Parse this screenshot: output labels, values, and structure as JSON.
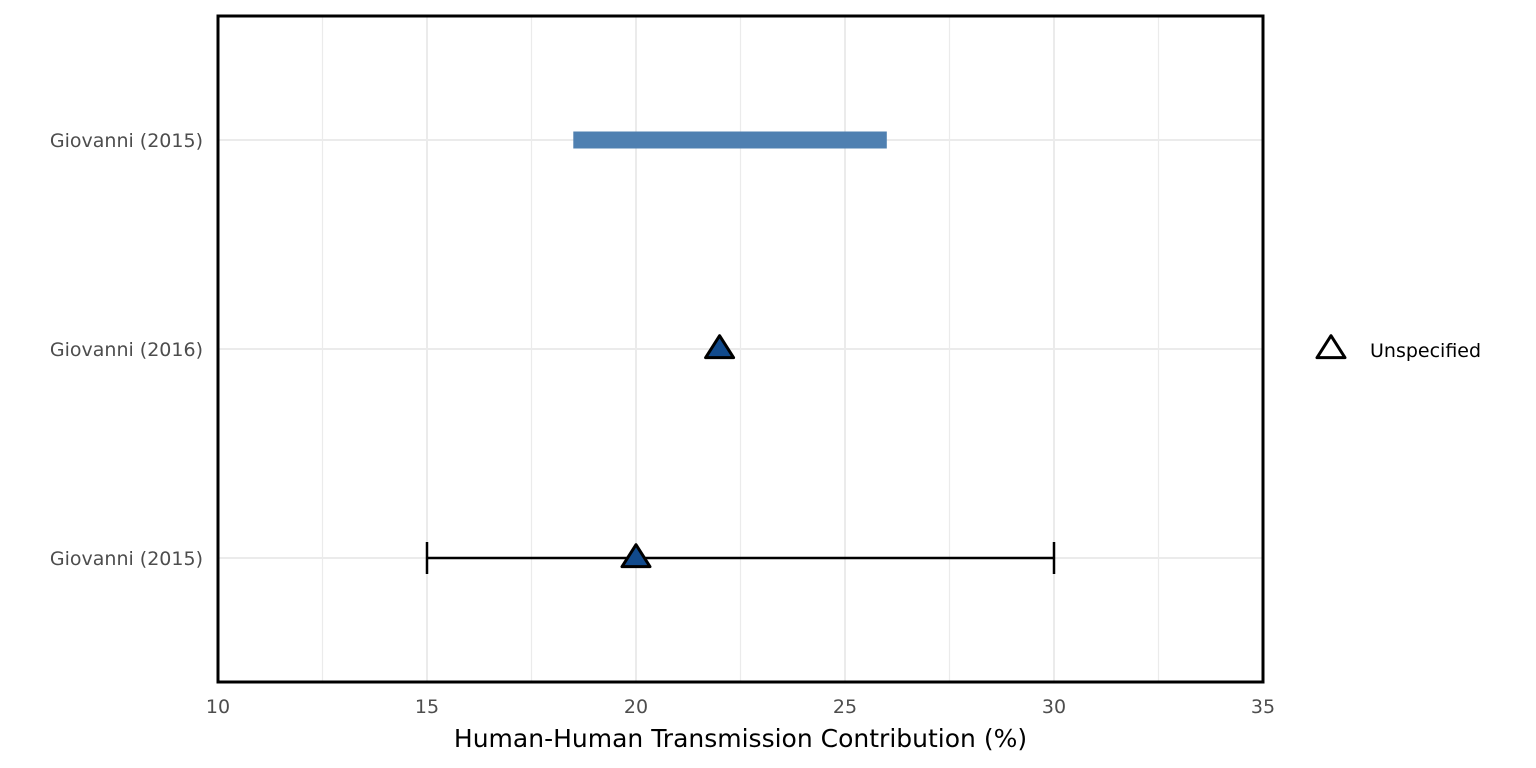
{
  "chart_data": {
    "type": "forest",
    "xlabel": "Human-Human Transmission Contribution (%)",
    "xlim": [
      10,
      35
    ],
    "x_ticks": [
      10,
      15,
      20,
      25,
      30,
      35
    ],
    "x_tick_labels": [
      "10",
      "15",
      "20",
      "25",
      "30",
      "35"
    ],
    "grid": true,
    "rows": [
      {
        "label": "Giovanni (2015)",
        "kind": "range",
        "low": 18.5,
        "high": 26.0
      },
      {
        "label": "Giovanni (2016)",
        "kind": "point",
        "value": 22.0
      },
      {
        "label": "Giovanni (2015)",
        "kind": "point_ci",
        "value": 20.0,
        "low": 15.0,
        "high": 30.0
      }
    ],
    "legend": {
      "position": "right",
      "items": [
        {
          "label": "Unspecified",
          "shape": "triangle"
        }
      ]
    },
    "colors": {
      "range_bar": "#4f80b1",
      "marker_fill": "#114a8c",
      "marker_stroke": "#000000",
      "grid": "#ebebeb",
      "panel_border": "#000000"
    }
  }
}
